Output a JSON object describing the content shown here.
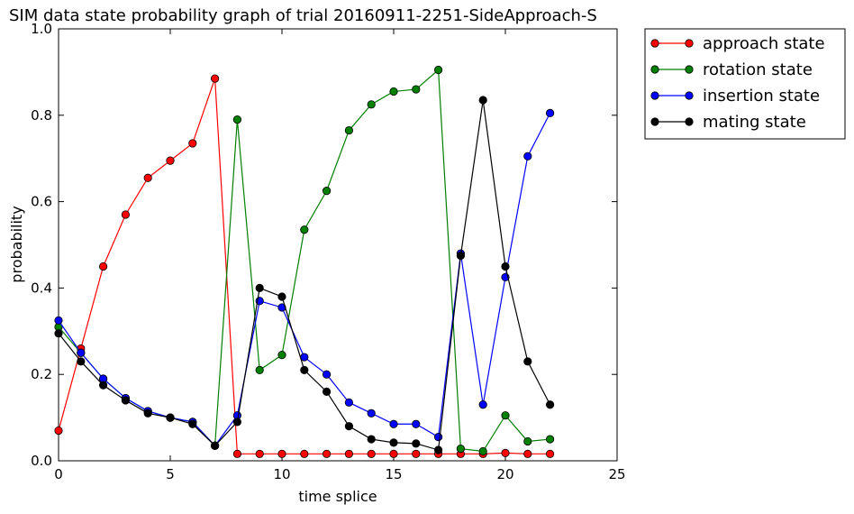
{
  "chart_data": {
    "type": "line",
    "title": "SIM data state probability graph of trial 20160911-2251-SideApproach-S",
    "xlabel": "time splice",
    "ylabel": "probability",
    "xlim": [
      0,
      25
    ],
    "ylim": [
      0.0,
      1.0
    ],
    "xticks": [
      "0",
      "5",
      "10",
      "15",
      "20",
      "25"
    ],
    "yticks": [
      "0.0",
      "0.2",
      "0.4",
      "0.6",
      "0.8",
      "1.0"
    ],
    "grid": false,
    "legend_position": "outside-top-right",
    "x": [
      0,
      1,
      2,
      3,
      4,
      5,
      6,
      7,
      8,
      9,
      10,
      11,
      12,
      13,
      14,
      15,
      16,
      17,
      18,
      19,
      20,
      21,
      22
    ],
    "series": [
      {
        "name": "approach state",
        "color": "#ff0000",
        "values": [
          0.07,
          0.26,
          0.45,
          0.57,
          0.655,
          0.695,
          0.735,
          0.885,
          0.016,
          0.016,
          0.016,
          0.016,
          0.016,
          0.016,
          0.016,
          0.016,
          0.016,
          0.016,
          0.016,
          0.016,
          0.018,
          0.016,
          0.016
        ]
      },
      {
        "name": "rotation state",
        "color": "#008000",
        "values": [
          0.31,
          0.25,
          0.19,
          0.145,
          0.115,
          0.1,
          0.09,
          0.035,
          0.79,
          0.21,
          0.245,
          0.535,
          0.625,
          0.765,
          0.825,
          0.855,
          0.86,
          0.905,
          0.028,
          0.022,
          0.105,
          0.045,
          0.05
        ]
      },
      {
        "name": "insertion state",
        "color": "#0000ff",
        "values": [
          0.325,
          0.25,
          0.19,
          0.145,
          0.115,
          0.1,
          0.09,
          0.035,
          0.105,
          0.37,
          0.355,
          0.24,
          0.2,
          0.135,
          0.11,
          0.085,
          0.085,
          0.055,
          0.48,
          0.13,
          0.425,
          0.705,
          0.805
        ]
      },
      {
        "name": "mating state",
        "color": "#000000",
        "values": [
          0.295,
          0.23,
          0.175,
          0.14,
          0.11,
          0.1,
          0.085,
          0.035,
          0.09,
          0.4,
          0.38,
          0.21,
          0.16,
          0.08,
          0.05,
          0.042,
          0.04,
          0.025,
          0.475,
          0.835,
          0.45,
          0.23,
          0.13
        ]
      }
    ]
  }
}
